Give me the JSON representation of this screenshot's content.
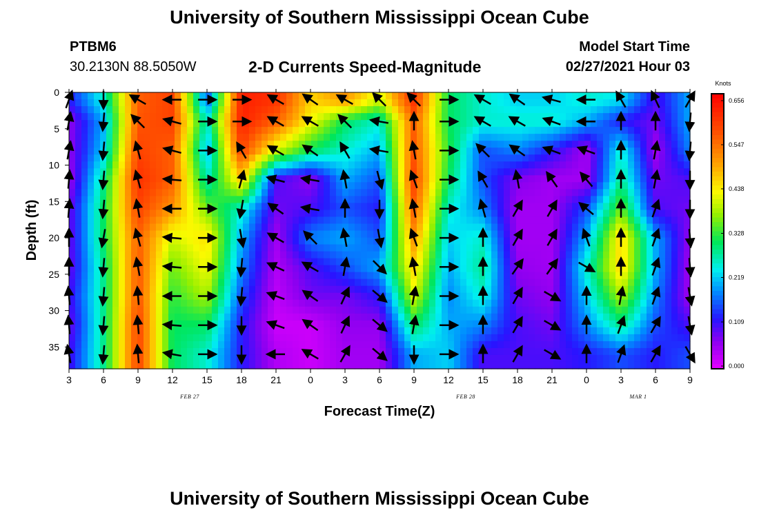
{
  "header": {
    "title": "University of Southern Mississippi Ocean Cube",
    "station_id": "PTBM6",
    "station_coords": "30.2130N 88.5050W",
    "chart_title": "2-D Currents Speed-Magnitude",
    "model_label": "Model Start Time",
    "model_time": "02/27/2021 Hour 03"
  },
  "footer": {
    "title": "University of Southern Mississippi Ocean Cube"
  },
  "chart_data": {
    "type": "heatmap",
    "title": "2-D Currents Speed-Magnitude",
    "xlabel": "Forecast Time(Z)",
    "ylabel": "Depth (ft)",
    "x_tick_labels": [
      "3",
      "6",
      "9",
      "12",
      "15",
      "18",
      "21",
      "0",
      "3",
      "6",
      "9",
      "12",
      "15",
      "18",
      "21",
      "0",
      "3",
      "6",
      "9"
    ],
    "x_date_labels": [
      {
        "tick_index": 4,
        "label": "FEB 27"
      },
      {
        "tick_index": 12,
        "label": "FEB 28"
      },
      {
        "tick_index": 17,
        "label": "MAR 1"
      }
    ],
    "y_tick_labels": [
      "0",
      "5",
      "10",
      "15",
      "20",
      "25",
      "30",
      "35"
    ],
    "ylim": [
      0,
      38
    ],
    "y_inverted": true,
    "x_hours_range": [
      0,
      54
    ],
    "colorbar": {
      "unit": "Knots",
      "ticks": [
        "0.656",
        "0.547",
        "0.438",
        "0.328",
        "0.219",
        "0.109",
        "0.000"
      ],
      "range": [
        0.0,
        0.656
      ]
    },
    "depths": [
      1,
      4,
      8,
      12,
      16,
      20,
      24,
      28,
      32,
      36
    ],
    "hours": [
      0,
      3,
      6,
      9,
      12,
      15,
      18,
      21,
      24,
      27,
      30,
      33,
      36,
      39,
      42,
      45,
      48,
      51,
      54
    ],
    "speed_grid": [
      [
        0.12,
        0.25,
        0.55,
        0.58,
        0.15,
        0.62,
        0.6,
        0.45,
        0.5,
        0.4,
        0.6,
        0.3,
        0.25,
        0.22,
        0.22,
        0.25,
        0.23,
        0.1,
        0.2
      ],
      [
        0.06,
        0.2,
        0.56,
        0.58,
        0.25,
        0.62,
        0.55,
        0.42,
        0.3,
        0.25,
        0.55,
        0.3,
        0.25,
        0.25,
        0.25,
        0.2,
        0.12,
        0.08,
        0.2
      ],
      [
        0.06,
        0.22,
        0.58,
        0.55,
        0.2,
        0.58,
        0.4,
        0.3,
        0.25,
        0.2,
        0.56,
        0.32,
        0.15,
        0.18,
        0.12,
        0.05,
        0.25,
        0.05,
        0.18
      ],
      [
        0.05,
        0.28,
        0.6,
        0.55,
        0.26,
        0.45,
        0.1,
        0.06,
        0.2,
        0.15,
        0.58,
        0.3,
        0.15,
        0.07,
        0.05,
        0.05,
        0.28,
        0.08,
        0.1
      ],
      [
        0.08,
        0.3,
        0.58,
        0.5,
        0.35,
        0.25,
        0.08,
        0.1,
        0.15,
        0.12,
        0.55,
        0.25,
        0.18,
        0.05,
        0.05,
        0.15,
        0.35,
        0.1,
        0.08
      ],
      [
        0.08,
        0.3,
        0.55,
        0.4,
        0.44,
        0.2,
        0.05,
        0.18,
        0.2,
        0.15,
        0.5,
        0.22,
        0.25,
        0.05,
        0.05,
        0.2,
        0.45,
        0.2,
        0.06
      ],
      [
        0.08,
        0.28,
        0.56,
        0.35,
        0.42,
        0.18,
        0.04,
        0.1,
        0.15,
        0.2,
        0.45,
        0.2,
        0.28,
        0.06,
        0.05,
        0.25,
        0.45,
        0.2,
        0.05
      ],
      [
        0.1,
        0.28,
        0.56,
        0.32,
        0.38,
        0.15,
        0.03,
        0.08,
        0.08,
        0.12,
        0.4,
        0.18,
        0.25,
        0.08,
        0.06,
        0.22,
        0.38,
        0.18,
        0.05
      ],
      [
        0.08,
        0.28,
        0.58,
        0.3,
        0.3,
        0.12,
        0.02,
        0.02,
        0.06,
        0.06,
        0.3,
        0.2,
        0.18,
        0.1,
        0.08,
        0.18,
        0.28,
        0.15,
        0.1
      ],
      [
        0.1,
        0.28,
        0.58,
        0.3,
        0.25,
        0.12,
        0.04,
        0.02,
        0.05,
        0.05,
        0.2,
        0.22,
        0.1,
        0.1,
        0.1,
        0.12,
        0.15,
        0.12,
        0.15
      ]
    ],
    "arrow_angles_deg": [
      [
        -70,
        90,
        210,
        180,
        0,
        0,
        210,
        215,
        210,
        225,
        225,
        0,
        210,
        215,
        195,
        180,
        240,
        245,
        -60
      ],
      [
        -80,
        95,
        225,
        195,
        0,
        0,
        210,
        210,
        225,
        190,
        270,
        0,
        210,
        210,
        200,
        180,
        270,
        270,
        95
      ],
      [
        -80,
        95,
        255,
        195,
        0,
        240,
        210,
        215,
        240,
        190,
        260,
        0,
        225,
        215,
        200,
        200,
        270,
        280,
        95
      ],
      [
        -85,
        95,
        255,
        185,
        0,
        285,
        195,
        190,
        260,
        75,
        250,
        0,
        240,
        260,
        235,
        230,
        270,
        280,
        90
      ],
      [
        -85,
        95,
        260,
        180,
        0,
        100,
        215,
        190,
        270,
        90,
        260,
        0,
        255,
        300,
        300,
        220,
        270,
        290,
        90
      ],
      [
        -90,
        100,
        255,
        185,
        0,
        80,
        210,
        225,
        260,
        80,
        250,
        0,
        270,
        300,
        300,
        250,
        270,
        290,
        85
      ],
      [
        -90,
        95,
        260,
        185,
        0,
        95,
        205,
        210,
        280,
        45,
        260,
        0,
        270,
        305,
        305,
        30,
        270,
        290,
        85
      ],
      [
        -95,
        95,
        265,
        180,
        0,
        95,
        200,
        215,
        295,
        40,
        280,
        0,
        270,
        300,
        30,
        270,
        280,
        290,
        80
      ],
      [
        -95,
        95,
        265,
        185,
        0,
        90,
        200,
        215,
        295,
        40,
        280,
        0,
        270,
        300,
        30,
        270,
        290,
        300,
        80
      ],
      [
        -100,
        95,
        265,
        190,
        0,
        90,
        180,
        210,
        300,
        40,
        90,
        0,
        270,
        300,
        30,
        270,
        290,
        300,
        60
      ]
    ]
  }
}
